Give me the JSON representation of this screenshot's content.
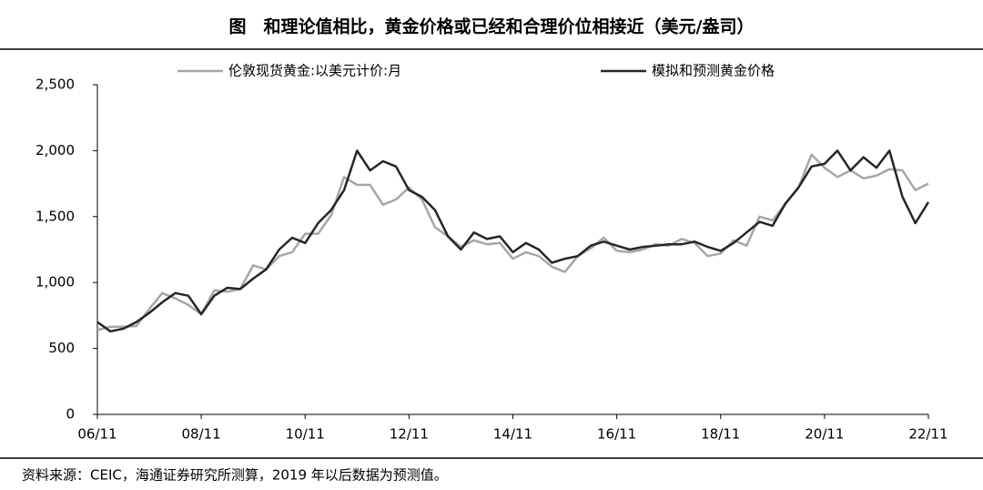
{
  "chart_data": {
    "type": "line",
    "title": "图　和理论值相比，黄金价格或已经和合理价位相接近（美元/盎司）",
    "source": "资料来源：CEIC，海通证券研究所测算，2019 年以后数据为预测值。",
    "categories": [
      "06/11",
      null,
      null,
      null,
      null,
      null,
      null,
      null,
      "08/11",
      null,
      null,
      null,
      null,
      null,
      null,
      null,
      "10/11",
      null,
      null,
      null,
      null,
      null,
      null,
      null,
      "12/11",
      null,
      null,
      null,
      null,
      null,
      null,
      null,
      "14/11",
      null,
      null,
      null,
      null,
      null,
      null,
      null,
      "16/11",
      null,
      null,
      null,
      null,
      null,
      null,
      null,
      "18/11",
      null,
      null,
      null,
      null,
      null,
      null,
      null,
      "20/11",
      null,
      null,
      null,
      null,
      null,
      null,
      null,
      "22/11"
    ],
    "series": [
      {
        "name": "伦敦现货黄金:以美元计价:月",
        "color": "#a6a6a6",
        "values": [
          640,
          665,
          665,
          670,
          800,
          920,
          880,
          830,
          760,
          940,
          930,
          950,
          1130,
          1100,
          1200,
          1230,
          1370,
          1370,
          1510,
          1800,
          1740,
          1740,
          1590,
          1630,
          1720,
          1630,
          1420,
          1350,
          1270,
          1320,
          1290,
          1300,
          1180,
          1230,
          1200,
          1120,
          1080,
          1200,
          1260,
          1340,
          1240,
          1230,
          1250,
          1290,
          1280,
          1330,
          1300,
          1200,
          1220,
          1320,
          1280,
          1500,
          1470,
          1600,
          1720,
          1970,
          1870,
          1800,
          1850,
          1790,
          1810,
          1860,
          1850,
          1700,
          1750
        ]
      },
      {
        "name": "模拟和预测黄金价格",
        "color": "#262626",
        "values": [
          700,
          630,
          650,
          700,
          770,
          850,
          920,
          900,
          760,
          900,
          960,
          950,
          1030,
          1100,
          1250,
          1340,
          1300,
          1450,
          1550,
          1700,
          2000,
          1850,
          1920,
          1880,
          1700,
          1650,
          1550,
          1350,
          1250,
          1380,
          1330,
          1350,
          1230,
          1300,
          1250,
          1150,
          1180,
          1200,
          1280,
          1310,
          1280,
          1250,
          1270,
          1280,
          1290,
          1290,
          1310,
          1270,
          1240,
          1300,
          1380,
          1460,
          1430,
          1600,
          1720,
          1880,
          1900,
          2000,
          1850,
          1950,
          1870,
          2000,
          1650,
          1450,
          1610
        ]
      }
    ],
    "ylim": [
      0,
      2500
    ],
    "yticks": [
      0,
      500,
      {
        "value": 1000,
        "label": "1,000"
      },
      {
        "value": 1500,
        "label": "1,500"
      },
      {
        "value": 2000,
        "label": "2,000"
      },
      {
        "value": 2500,
        "label": "2,500"
      }
    ],
    "grid": false
  }
}
